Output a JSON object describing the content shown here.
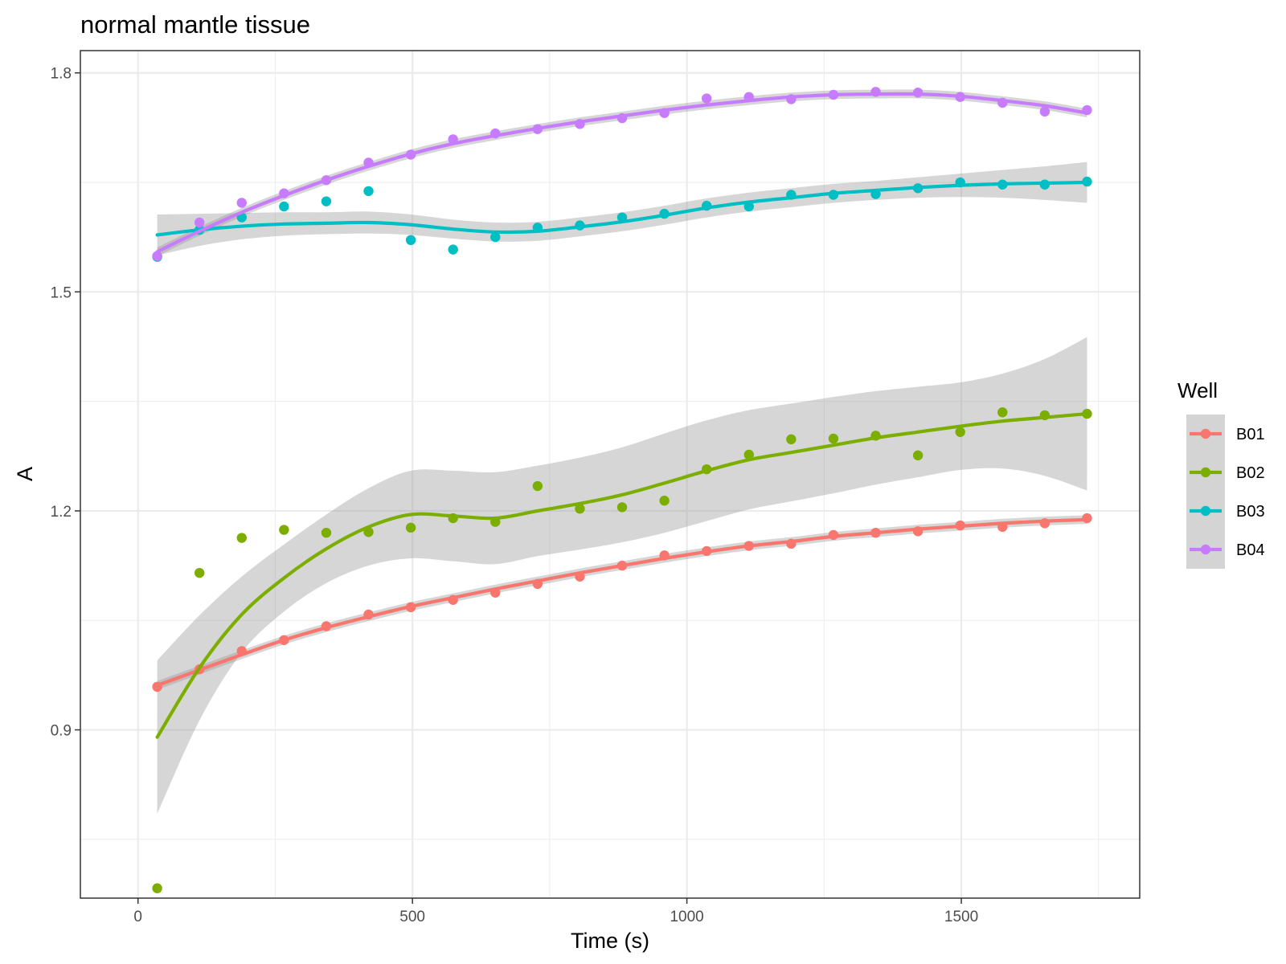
{
  "chart_data": {
    "type": "scatter",
    "title": "normal mantle tissue",
    "xlabel": "Time (s)",
    "ylabel": "A",
    "xlim": [
      -105,
      1825
    ],
    "ylim": [
      0.6695,
      1.8305
    ],
    "x_ticks": [
      0,
      500,
      1000,
      1500
    ],
    "x_tick_labels": [
      "0",
      "500",
      "1000",
      "1500"
    ],
    "y_ticks": [
      0.9,
      1.2,
      1.5,
      1.8
    ],
    "y_tick_labels": [
      "0.9",
      "1.2",
      "1.5",
      "1.8"
    ],
    "grid": true,
    "legend": {
      "title": "Well",
      "position": "right"
    },
    "x": [
      35,
      112,
      189,
      266,
      343,
      420,
      497,
      574,
      651,
      728,
      805,
      882,
      959,
      1036,
      1113,
      1190,
      1267,
      1344,
      1421,
      1498,
      1575,
      1652,
      1729
    ],
    "series": [
      {
        "name": "B01",
        "color": "#F8766D",
        "points": [
          0.959,
          0.983,
          1.008,
          1.023,
          1.042,
          1.058,
          1.068,
          1.078,
          1.088,
          1.1,
          1.11,
          1.125,
          1.139,
          1.145,
          1.152,
          1.155,
          1.167,
          1.17,
          1.172,
          1.18,
          1.178,
          1.183,
          1.19
        ],
        "smooth": [
          0.961,
          0.982,
          1.003,
          1.023,
          1.04,
          1.055,
          1.069,
          1.081,
          1.093,
          1.104,
          1.115,
          1.125,
          1.135,
          1.144,
          1.152,
          1.158,
          1.165,
          1.17,
          1.175,
          1.179,
          1.183,
          1.186,
          1.188
        ],
        "band": 0.006
      },
      {
        "name": "B02",
        "color": "#7CAE00",
        "points": [
          0.683,
          1.115,
          1.163,
          1.174,
          1.17,
          1.171,
          1.177,
          1.19,
          1.185,
          1.234,
          1.203,
          1.205,
          1.214,
          1.257,
          1.277,
          1.298,
          1.299,
          1.303,
          1.276,
          1.308,
          1.335,
          1.331,
          1.333
        ],
        "smooth": [
          0.89,
          0.985,
          1.058,
          1.108,
          1.148,
          1.178,
          1.195,
          1.193,
          1.19,
          1.2,
          1.21,
          1.222,
          1.238,
          1.255,
          1.27,
          1.28,
          1.29,
          1.3,
          1.308,
          1.316,
          1.323,
          1.328,
          1.333
        ],
        "band": [
          0.105,
          0.072,
          0.052,
          0.046,
          0.047,
          0.053,
          0.06,
          0.062,
          0.063,
          0.062,
          0.063,
          0.065,
          0.068,
          0.069,
          0.068,
          0.067,
          0.066,
          0.064,
          0.062,
          0.06,
          0.065,
          0.08,
          0.105
        ]
      },
      {
        "name": "B03",
        "color": "#00BFC4",
        "points": [
          1.548,
          1.585,
          1.602,
          1.617,
          1.624,
          1.638,
          1.571,
          1.558,
          1.575,
          1.588,
          1.591,
          1.602,
          1.607,
          1.618,
          1.617,
          1.633,
          1.633,
          1.634,
          1.642,
          1.65,
          1.647,
          1.647,
          1.651
        ],
        "smooth": [
          1.578,
          1.585,
          1.59,
          1.593,
          1.594,
          1.595,
          1.592,
          1.586,
          1.582,
          1.583,
          1.589,
          1.596,
          1.605,
          1.615,
          1.623,
          1.629,
          1.635,
          1.639,
          1.643,
          1.646,
          1.648,
          1.649,
          1.65
        ],
        "band": [
          0.028,
          0.022,
          0.018,
          0.016,
          0.015,
          0.015,
          0.014,
          0.013,
          0.013,
          0.013,
          0.013,
          0.013,
          0.013,
          0.013,
          0.013,
          0.013,
          0.013,
          0.013,
          0.014,
          0.016,
          0.019,
          0.023,
          0.028
        ]
      },
      {
        "name": "B04",
        "color": "#C77CFF",
        "points": [
          1.549,
          1.595,
          1.622,
          1.635,
          1.653,
          1.677,
          1.688,
          1.709,
          1.717,
          1.723,
          1.73,
          1.738,
          1.745,
          1.765,
          1.767,
          1.764,
          1.77,
          1.774,
          1.773,
          1.767,
          1.759,
          1.747,
          1.749
        ],
        "smooth": [
          1.555,
          1.583,
          1.609,
          1.632,
          1.653,
          1.672,
          1.689,
          1.703,
          1.714,
          1.724,
          1.733,
          1.741,
          1.749,
          1.756,
          1.762,
          1.767,
          1.77,
          1.771,
          1.771,
          1.768,
          1.762,
          1.755,
          1.745
        ],
        "band": 0.006
      }
    ]
  }
}
